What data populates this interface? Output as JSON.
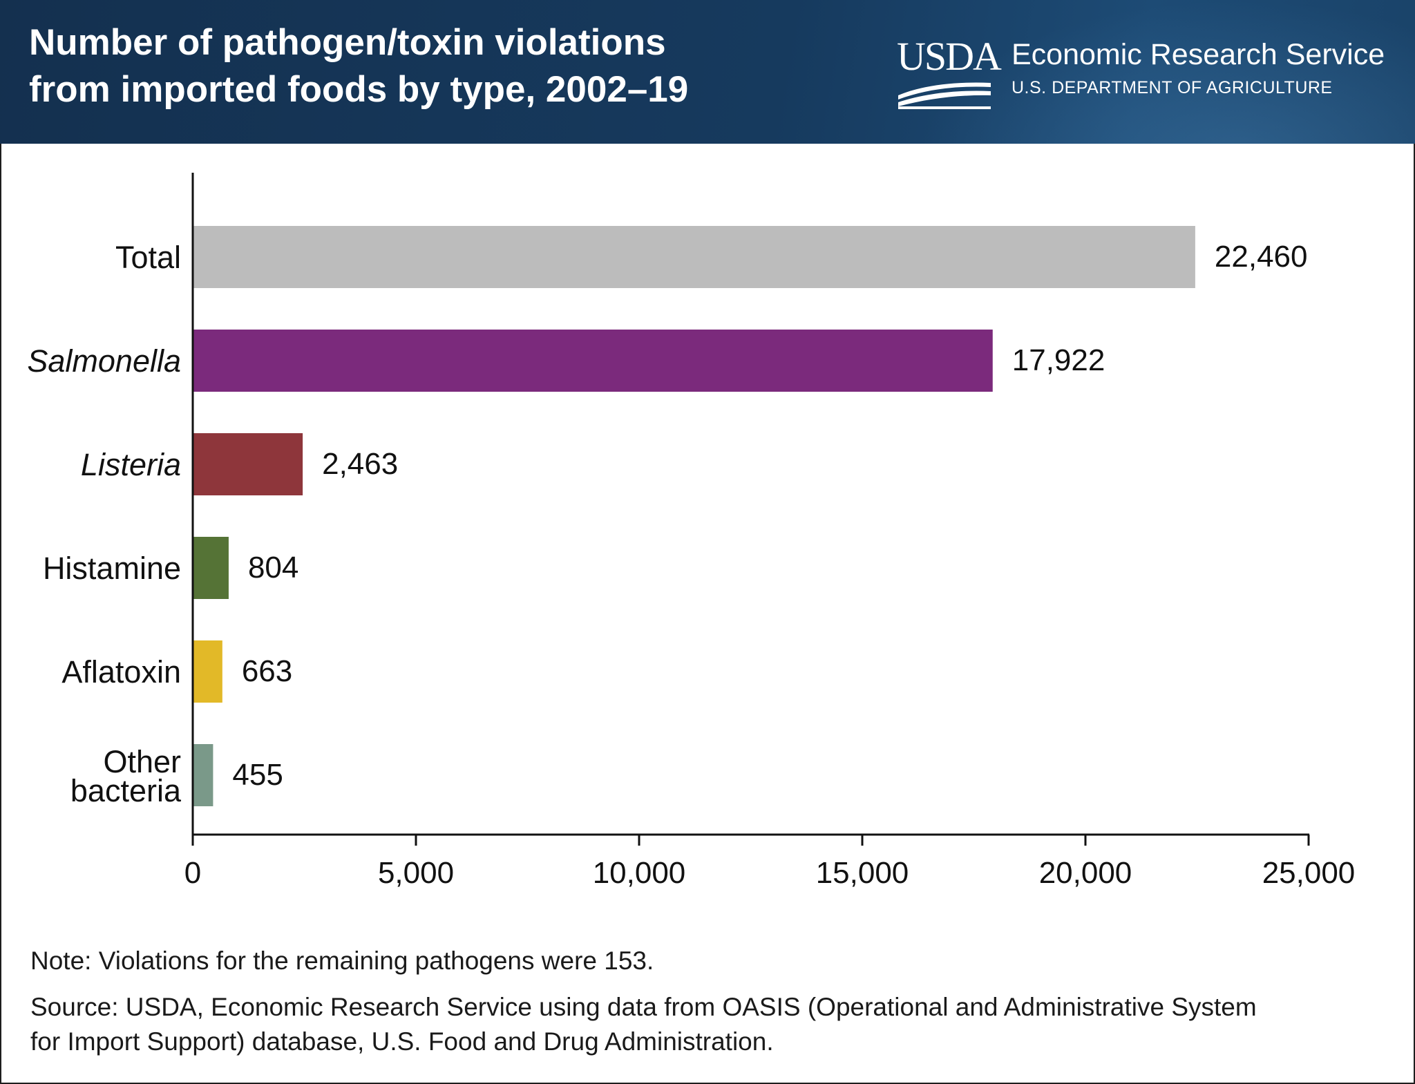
{
  "header": {
    "title_line1": "Number of pathogen/toxin violations",
    "title_line2": "from imported foods by type, 2002–19",
    "logo_mark": "USDA",
    "logo_agency": "Economic Research Service",
    "logo_department": "U.S. DEPARTMENT OF AGRICULTURE"
  },
  "chart_data": {
    "type": "bar",
    "orientation": "horizontal",
    "categories": [
      "Total",
      "Salmonella",
      "Listeria",
      "Histamine",
      "Aflatoxin",
      "Other bacteria"
    ],
    "category_label_lines": [
      [
        "Total"
      ],
      [
        "Salmonella"
      ],
      [
        "Listeria"
      ],
      [
        "Histamine"
      ],
      [
        "Aflatoxin"
      ],
      [
        "Other",
        "bacteria"
      ]
    ],
    "category_italic": [
      false,
      true,
      true,
      false,
      false,
      false
    ],
    "values": [
      22460,
      17922,
      2463,
      804,
      663,
      455
    ],
    "value_labels": [
      "22,460",
      "17,922",
      "2,463",
      "804",
      "663",
      "455"
    ],
    "bar_colors": [
      "#bcbcbc",
      "#7b2a7c",
      "#8e363b",
      "#557336",
      "#e2b928",
      "#7a9989"
    ],
    "xlim": [
      0,
      25000
    ],
    "xticks": [
      0,
      5000,
      10000,
      15000,
      20000,
      25000
    ],
    "xtick_labels": [
      "0",
      "5,000",
      "10,000",
      "15,000",
      "20,000",
      "25,000"
    ],
    "xlabel": "",
    "ylabel": "",
    "grid": false,
    "legend": "none"
  },
  "footer": {
    "note": "Note: Violations for the remaining pathogens were 153.",
    "source_line1": "Source: USDA, Economic Research Service using data from OASIS (Operational and Administrative System",
    "source_line2": "for Import Support) database, U.S. Food and Drug Administration."
  }
}
